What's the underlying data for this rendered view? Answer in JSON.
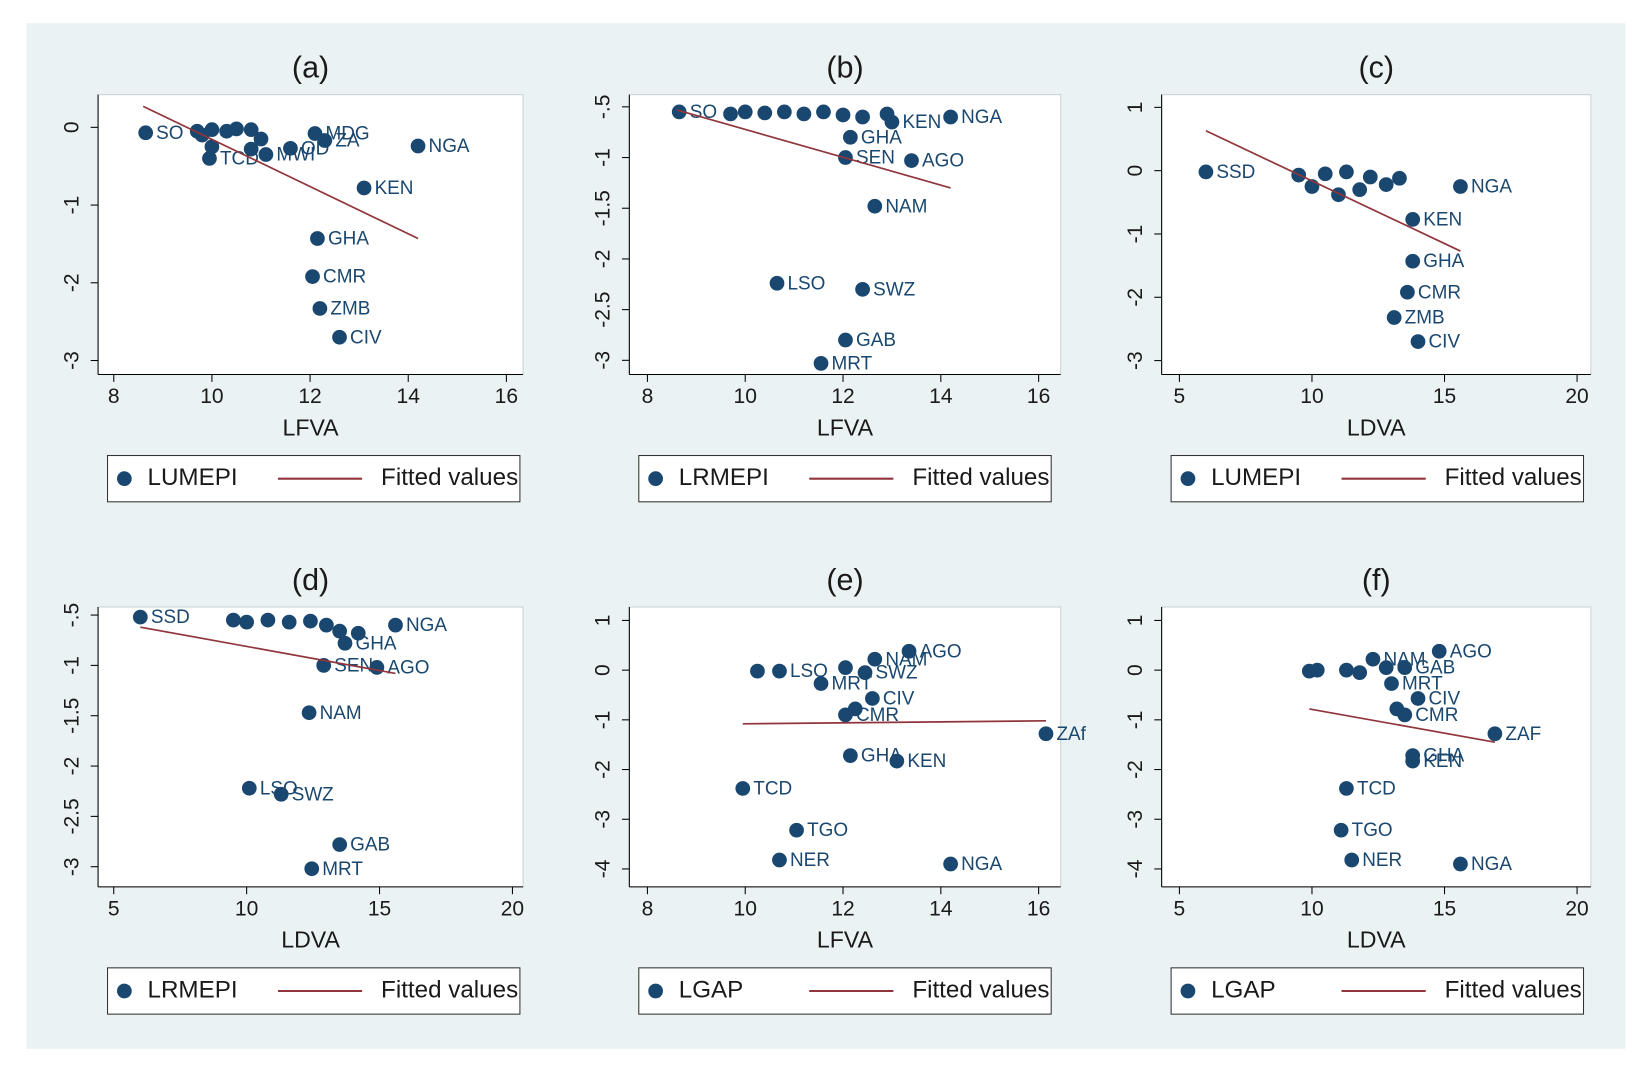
{
  "chart_data": [
    {
      "type": "scatter",
      "title": "(a)",
      "x_label": "LFVA",
      "xlim": [
        7.68,
        16.34
      ],
      "ylim": [
        -3.18,
        0.42
      ],
      "xticks": [
        8,
        10,
        12,
        14,
        16
      ],
      "yticks": [
        0,
        -1,
        -2,
        -3
      ],
      "series": [
        {
          "name": "LUMEPI",
          "color": "#1a476f",
          "x": [
            8.65,
            9.7,
            9.8,
            10.0,
            10.3,
            10.5,
            10.8,
            11.0,
            10.0,
            10.8,
            11.1,
            9.95,
            12.1,
            12.3,
            11.6,
            14.2,
            13.1,
            12.15,
            12.05,
            12.2,
            12.6
          ],
          "values": [
            -0.07,
            -0.05,
            -0.1,
            -0.03,
            -0.05,
            -0.02,
            -0.03,
            -0.15,
            -0.25,
            -0.28,
            -0.35,
            -0.4,
            -0.08,
            -0.17,
            -0.27,
            -0.24,
            -0.78,
            -1.43,
            -1.92,
            -2.33,
            -2.7
          ],
          "labels": [
            "SO",
            null,
            null,
            null,
            null,
            null,
            null,
            null,
            null,
            null,
            "MWI",
            "TCD",
            "MDG",
            "ZA",
            "OD",
            "NGA",
            "KEN",
            "GHA",
            "CMR",
            "ZMB",
            "CIV"
          ]
        },
        {
          "name": "Fitted values",
          "type": "line",
          "color": "#90353b",
          "x": [
            8.6,
            14.2
          ],
          "values": [
            0.27,
            -1.43
          ]
        }
      ]
    },
    {
      "type": "scatter",
      "title": "(b)",
      "x_label": "LFVA",
      "xlim": [
        7.63,
        16.45
      ],
      "ylim": [
        -3.14,
        -0.38
      ],
      "xticks": [
        8,
        10,
        12,
        14,
        16
      ],
      "yticks": [
        {
          "value": -0.5,
          "label": "-.5"
        },
        -1,
        -1.5,
        -2,
        -2.5,
        -3
      ],
      "series": [
        {
          "name": "LRMEPI",
          "color": "#1a476f",
          "x": [
            8.65,
            9.7,
            10.0,
            10.4,
            10.8,
            11.2,
            11.6,
            12.0,
            12.4,
            12.9,
            13.0,
            14.2,
            12.15,
            12.05,
            13.4,
            12.65,
            10.65,
            12.4,
            12.05,
            11.55
          ],
          "values": [
            -0.55,
            -0.57,
            -0.55,
            -0.56,
            -0.55,
            -0.57,
            -0.55,
            -0.58,
            -0.6,
            -0.57,
            -0.65,
            -0.6,
            -0.8,
            -1.0,
            -1.03,
            -1.48,
            -2.24,
            -2.3,
            -2.8,
            -3.03
          ],
          "labels": [
            "SO",
            null,
            null,
            null,
            null,
            null,
            null,
            null,
            null,
            null,
            "KEN",
            "NGA",
            "GHA",
            "SEN",
            "AGO",
            "NAM",
            "LSO",
            "SWZ",
            "GAB",
            "MRT"
          ]
        },
        {
          "name": "Fitted values",
          "type": "line",
          "color": "#90353b",
          "x": [
            8.6,
            14.2
          ],
          "values": [
            -0.53,
            -1.3
          ]
        }
      ]
    },
    {
      "type": "scatter",
      "title": "(c)",
      "x_label": "LDVA",
      "xlim": [
        4.33,
        20.52
      ],
      "ylim": [
        -3.22,
        1.2
      ],
      "xticks": [
        5,
        10,
        15,
        20
      ],
      "yticks": [
        1,
        0,
        -1,
        -2,
        -3
      ],
      "series": [
        {
          "name": "LUMEPI",
          "color": "#1a476f",
          "x": [
            6.0,
            9.5,
            10.0,
            10.5,
            11.0,
            11.3,
            11.8,
            12.2,
            12.8,
            13.3,
            15.6,
            13.8,
            13.8,
            13.6,
            13.1,
            14.0
          ],
          "values": [
            -0.02,
            -0.07,
            -0.25,
            -0.05,
            -0.38,
            -0.02,
            -0.3,
            -0.1,
            -0.22,
            -0.12,
            -0.25,
            -0.77,
            -1.43,
            -1.92,
            -2.32,
            -2.7
          ],
          "labels": [
            "SSD",
            null,
            null,
            null,
            null,
            null,
            null,
            null,
            null,
            null,
            "NGA",
            "KEN",
            "GHA",
            "CMR",
            "ZMB",
            "CIV"
          ]
        },
        {
          "name": "Fitted values",
          "type": "line",
          "color": "#90353b",
          "x": [
            6.0,
            15.6
          ],
          "values": [
            0.63,
            -1.27
          ]
        }
      ]
    },
    {
      "type": "scatter",
      "title": "(d)",
      "x_label": "LDVA",
      "xlim": [
        4.41,
        20.4
      ],
      "ylim": [
        -3.2,
        -0.42
      ],
      "xticks": [
        5,
        10,
        15,
        20
      ],
      "yticks": [
        {
          "value": -0.5,
          "label": "-.5"
        },
        -1,
        -1.5,
        -2,
        -2.5,
        -3
      ],
      "series": [
        {
          "name": "LRMEPI",
          "color": "#1a476f",
          "x": [
            6.0,
            9.5,
            10.0,
            10.8,
            11.6,
            12.4,
            13.0,
            13.5,
            14.2,
            15.6,
            13.7,
            12.9,
            14.9,
            12.35,
            10.1,
            11.3,
            13.5,
            12.45
          ],
          "values": [
            -0.52,
            -0.55,
            -0.57,
            -0.55,
            -0.57,
            -0.56,
            -0.6,
            -0.66,
            -0.68,
            -0.6,
            -0.78,
            -1.0,
            -1.02,
            -1.47,
            -2.22,
            -2.28,
            -2.78,
            -3.02
          ],
          "labels": [
            "SSD",
            null,
            null,
            null,
            null,
            null,
            null,
            null,
            null,
            "NGA",
            "GHA",
            "SEN",
            "AGO",
            "NAM",
            "LSO",
            "SWZ",
            "GAB",
            "MRT"
          ]
        },
        {
          "name": "Fitted values",
          "type": "line",
          "color": "#90353b",
          "x": [
            6.0,
            15.6
          ],
          "values": [
            -0.62,
            -1.08
          ]
        }
      ]
    },
    {
      "type": "scatter",
      "title": "(e)",
      "x_label": "LFVA",
      "xlim": [
        7.63,
        16.45
      ],
      "ylim": [
        -4.36,
        1.27
      ],
      "xticks": [
        8,
        10,
        12,
        14,
        16
      ],
      "yticks": [
        1,
        0,
        -1,
        -2,
        -3,
        -4
      ],
      "series": [
        {
          "name": "LGAP",
          "color": "#1a476f",
          "x": [
            13.35,
            12.65,
            10.25,
            10.7,
            12.05,
            12.45,
            11.55,
            12.6,
            12.25,
            12.05,
            16.15,
            12.15,
            13.1,
            9.95,
            11.05,
            10.7,
            14.2
          ],
          "values": [
            0.38,
            0.22,
            -0.02,
            -0.02,
            0.05,
            -0.05,
            -0.27,
            -0.57,
            -0.78,
            -0.9,
            -1.28,
            -1.72,
            -1.83,
            -2.38,
            -3.22,
            -3.82,
            -3.9
          ],
          "labels": [
            "AGO",
            "NAM",
            null,
            "LSO",
            null,
            "SWZ",
            "MRT",
            "CIV",
            null,
            "CMR",
            "ZAf",
            "GHA",
            "KEN",
            "TCD",
            "TGO",
            "NER",
            "NGA"
          ]
        },
        {
          "name": "Fitted values",
          "type": "line",
          "color": "#90353b",
          "x": [
            9.95,
            16.15
          ],
          "values": [
            -1.08,
            -1.02
          ]
        }
      ]
    },
    {
      "type": "scatter",
      "title": "(f)",
      "x_label": "LDVA",
      "xlim": [
        4.33,
        20.52
      ],
      "ylim": [
        -4.36,
        1.27
      ],
      "xticks": [
        5,
        10,
        15,
        20
      ],
      "yticks": [
        1,
        0,
        -1,
        -2,
        -3,
        -4
      ],
      "series": [
        {
          "name": "LGAP",
          "color": "#1a476f",
          "x": [
            14.8,
            12.3,
            9.9,
            10.2,
            11.3,
            11.8,
            12.8,
            13.5,
            13.0,
            14.0,
            13.2,
            13.5,
            16.9,
            13.8,
            13.8,
            11.3,
            11.1,
            11.5,
            15.6
          ],
          "values": [
            0.38,
            0.22,
            -0.02,
            0.0,
            0.0,
            -0.05,
            0.05,
            0.05,
            -0.27,
            -0.57,
            -0.78,
            -0.9,
            -1.28,
            -1.72,
            -1.83,
            -2.38,
            -3.22,
            -3.82,
            -3.9
          ],
          "labels": [
            "AGO",
            "NAM",
            null,
            null,
            null,
            null,
            null,
            "GAB",
            "MRT",
            "CIV",
            null,
            "CMR",
            "ZAF",
            "GHA",
            "KEN",
            "TCD",
            "TGO",
            "NER",
            "NGA"
          ]
        },
        {
          "name": "Fitted values",
          "type": "line",
          "color": "#90353b",
          "x": [
            9.9,
            16.9
          ],
          "values": [
            -0.78,
            -1.45
          ]
        }
      ]
    }
  ]
}
